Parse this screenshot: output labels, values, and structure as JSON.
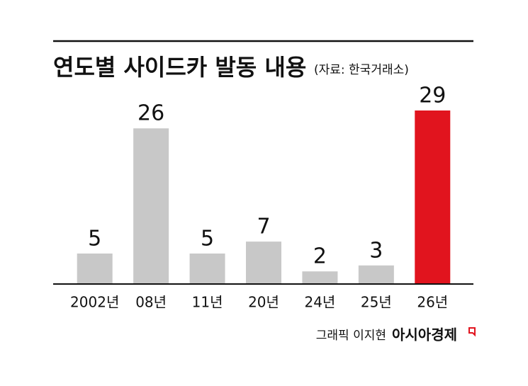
{
  "chart_data": {
    "type": "bar",
    "title": "연도별 사이드카 발동 내용",
    "subtitle": "(자료: 한국거래소)",
    "categories": [
      "2002년",
      "08년",
      "11년",
      "20년",
      "24년",
      "25년",
      "26년"
    ],
    "values": [
      5,
      26,
      5,
      7,
      2,
      3,
      29
    ],
    "colors": [
      "#c8c8c8",
      "#c8c8c8",
      "#c8c8c8",
      "#c8c8c8",
      "#c8c8c8",
      "#c8c8c8",
      "#e1141e"
    ],
    "credit": "그래픽 이지현",
    "publisher": "아시아경제"
  }
}
